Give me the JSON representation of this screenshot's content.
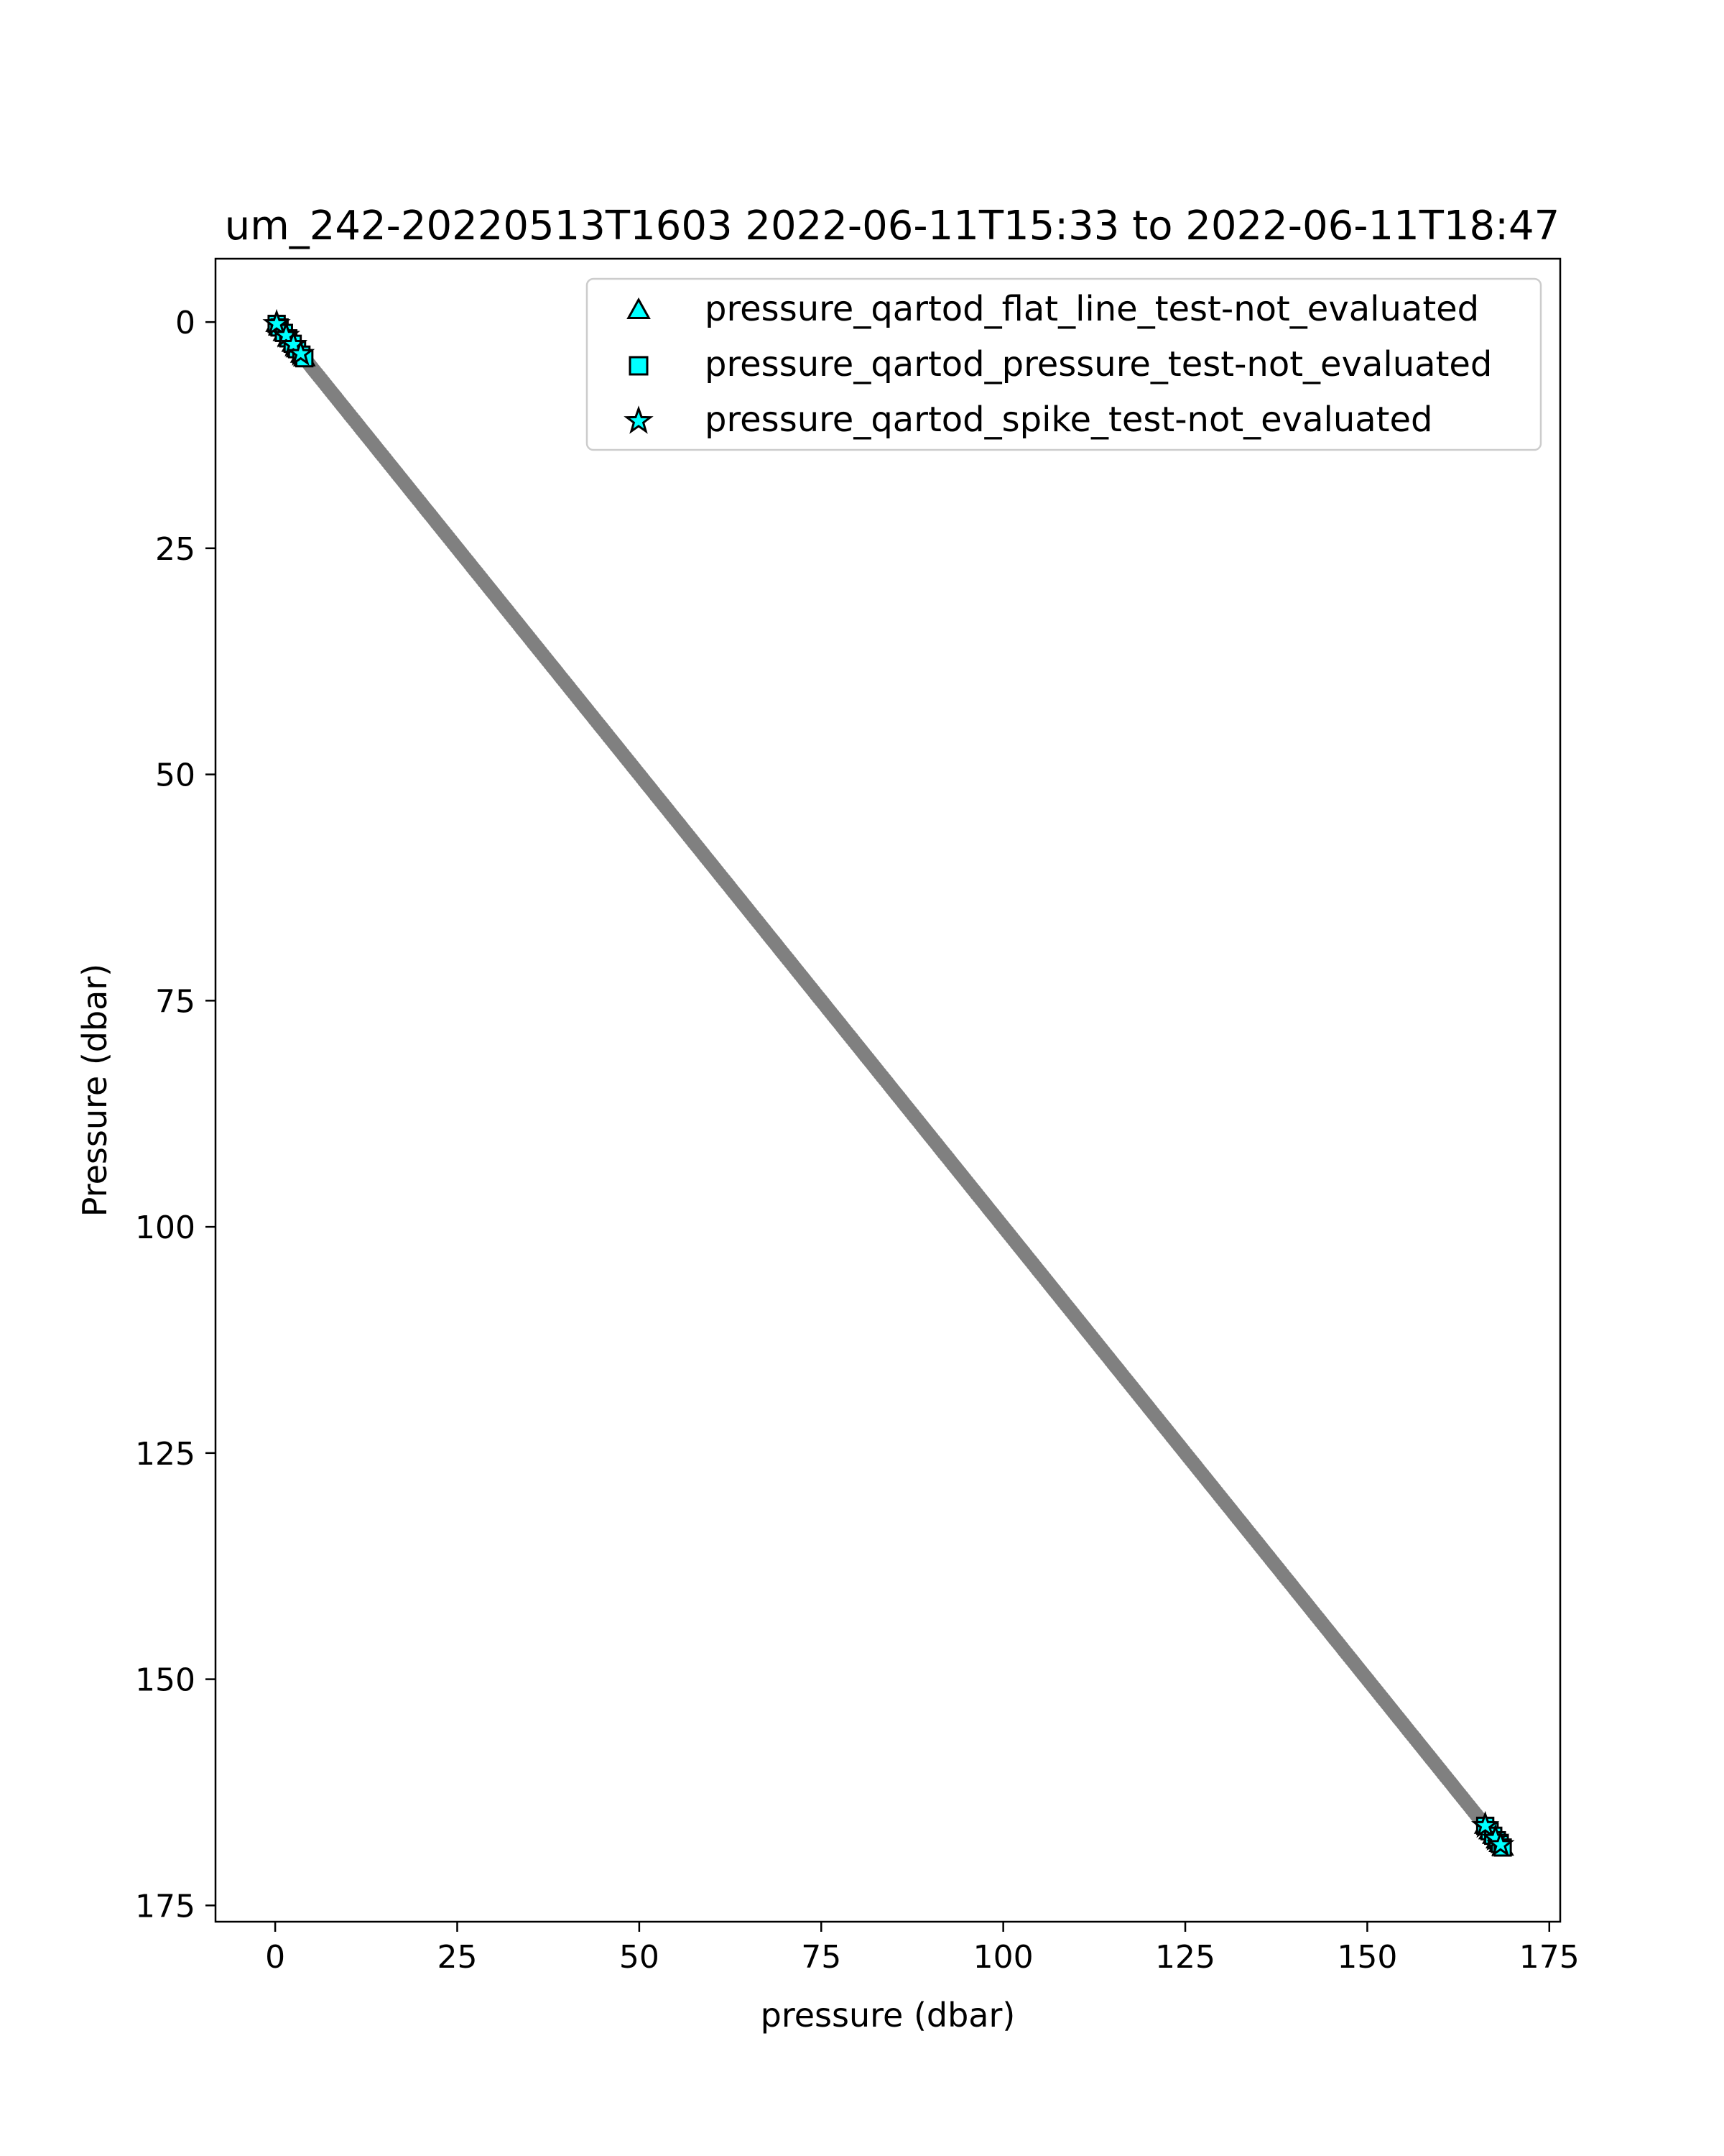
{
  "chart_data": {
    "type": "scatter",
    "title": "um_242-20220513T1603 2022-06-11T15:33 to 2022-06-11T18:47",
    "xlabel": "pressure (dbar)",
    "ylabel": "Pressure (dbar)",
    "xlim": [
      -8.2,
      176.5
    ],
    "ylim": [
      176.8,
      -7
    ],
    "y_inverted": true,
    "x_ticks": [
      0,
      25,
      50,
      75,
      100,
      125,
      150,
      175
    ],
    "y_ticks": [
      0,
      25,
      50,
      75,
      100,
      125,
      150,
      175
    ],
    "x_tick_labels": [
      "0",
      "25",
      "50",
      "75",
      "100",
      "125",
      "150",
      "175"
    ],
    "y_tick_labels": [
      "0",
      "25",
      "50",
      "75",
      "100",
      "125",
      "150",
      "175"
    ],
    "grid": false,
    "legend_position": "top-right",
    "series": [
      {
        "color": "#808080",
        "marker": "circle",
        "x_start": 0.2,
        "x_end": 168.2,
        "num_points": 520,
        "note_relationship": "y equals x"
      },
      {
        "name": "pressure_qartod_flat_line_test-not_evaluated",
        "color": "#00ffff",
        "edgecolor": "#000000",
        "marker": "triangle",
        "x": [
          0.2,
          0.6,
          1.2,
          1.8,
          2.4,
          3.0,
          3.6,
          4.0,
          166.2,
          166.8,
          167.3,
          167.8,
          168.2,
          168.6
        ],
        "y": [
          0.2,
          0.6,
          1.2,
          1.8,
          2.4,
          3.0,
          3.6,
          4.0,
          166.2,
          166.8,
          167.3,
          167.8,
          168.2,
          168.6
        ]
      },
      {
        "name": "pressure_qartod_pressure_test-not_evaluated",
        "color": "#00ffff",
        "edgecolor": "#000000",
        "marker": "square",
        "x": [
          0.2,
          0.6,
          1.2,
          1.8,
          2.4,
          3.0,
          3.6,
          4.0,
          166.2,
          166.8,
          167.3,
          167.8,
          168.2,
          168.6
        ],
        "y": [
          0.2,
          0.6,
          1.2,
          1.8,
          2.4,
          3.0,
          3.6,
          4.0,
          166.2,
          166.8,
          167.3,
          167.8,
          168.2,
          168.6
        ]
      },
      {
        "name": "pressure_qartod_spike_test-not_evaluated",
        "color": "#00ffff",
        "edgecolor": "#000000",
        "marker": "star",
        "x": [
          0.2,
          1.5,
          2.5,
          3.5,
          166.2,
          167.6,
          168.3
        ],
        "y": [
          0.2,
          1.5,
          2.5,
          3.5,
          166.2,
          167.6,
          168.3
        ]
      }
    ]
  }
}
